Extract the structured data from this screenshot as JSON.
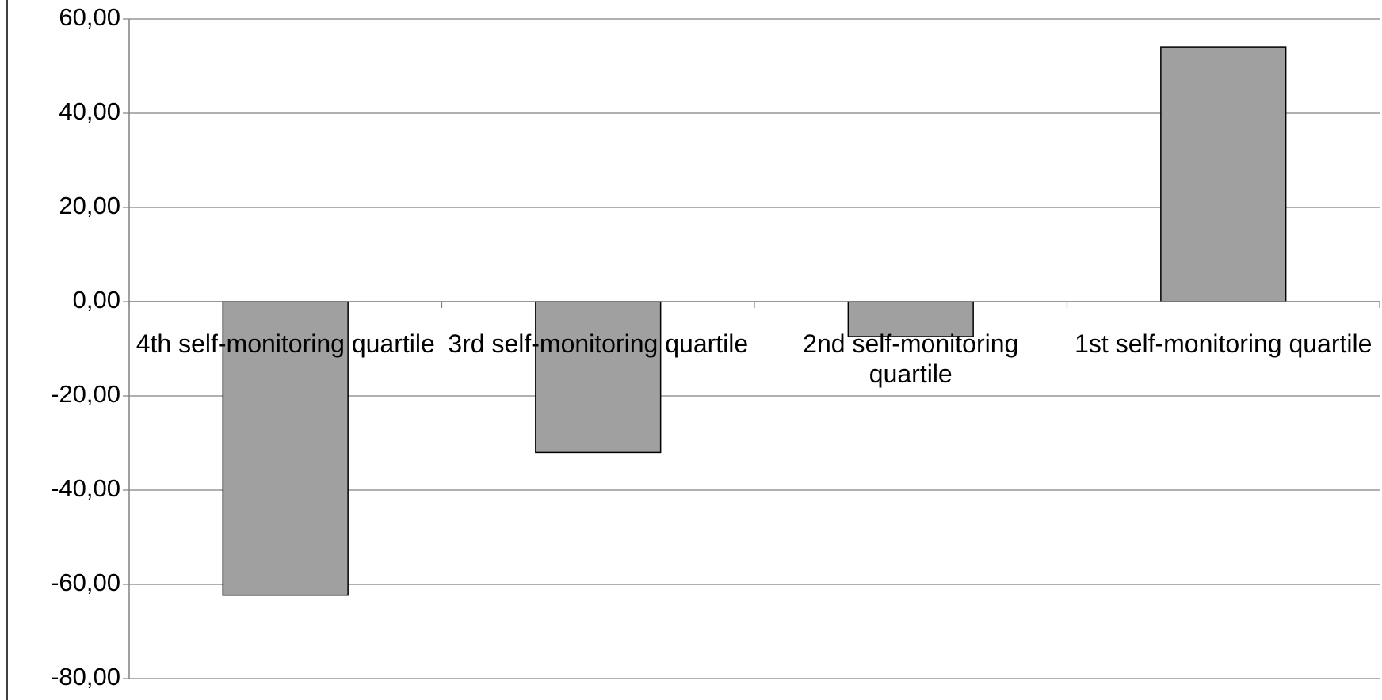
{
  "chart_data": {
    "type": "bar",
    "categories": [
      "4th self-monitoring quartile",
      "3rd self-monitoring quartile",
      "2nd self-monitoring quartile",
      "1st self-monitoring quartile"
    ],
    "values": [
      -62.3,
      -32.0,
      -7.4,
      54.1
    ],
    "color": "#a0a0a0",
    "ylim": [
      -80,
      60
    ],
    "yticks": [
      {
        "value": -80,
        "label": "-80,00"
      },
      {
        "value": -60,
        "label": "-60,00"
      },
      {
        "value": -40,
        "label": "-40,00"
      },
      {
        "value": -20,
        "label": "-20,00"
      },
      {
        "value": 0,
        "label": "0,00"
      },
      {
        "value": 20,
        "label": "20,00"
      },
      {
        "value": 40,
        "label": "40,00"
      },
      {
        "value": 60,
        "label": "60,00"
      }
    ],
    "grid": true
  }
}
